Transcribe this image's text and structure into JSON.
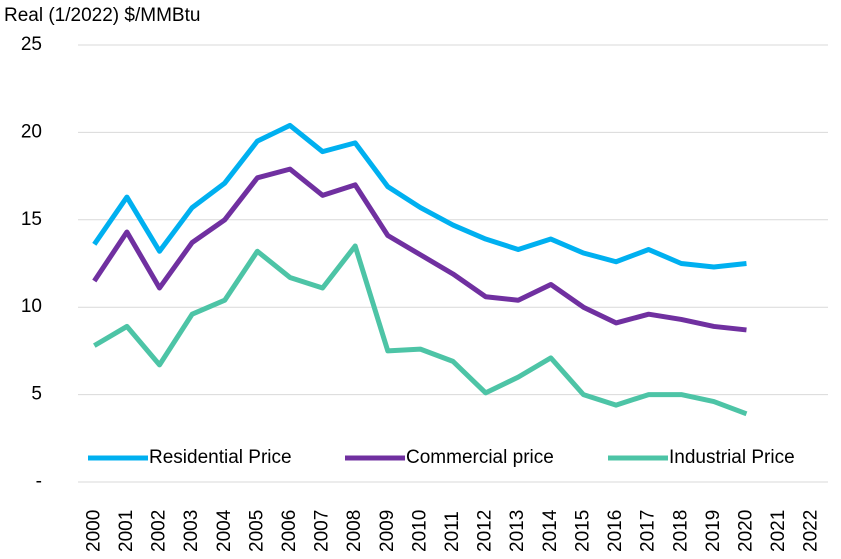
{
  "chart_data": {
    "type": "line",
    "y_label": "Real (1/2022) $/MMBtu",
    "categories": [
      "2000",
      "2001",
      "2002",
      "2003",
      "2004",
      "2005",
      "2006",
      "2007",
      "2008",
      "2009",
      "2010",
      "2011",
      "2012",
      "2013",
      "2014",
      "2015",
      "2016",
      "2017",
      "2018",
      "2019",
      "2020",
      "2021",
      "2022"
    ],
    "series": [
      {
        "name": "Residential Price",
        "color": "#00b0f0",
        "values": [
          13.6,
          16.3,
          13.2,
          15.7,
          17.1,
          19.5,
          20.4,
          18.9,
          19.4,
          16.9,
          15.7,
          14.7,
          13.9,
          13.3,
          13.9,
          13.1,
          12.6,
          13.3,
          12.5,
          12.3,
          12.5,
          null,
          null
        ]
      },
      {
        "name": "Commercial price",
        "color": "#7030a0",
        "values": [
          11.5,
          14.3,
          11.1,
          13.7,
          15.0,
          17.4,
          17.9,
          16.4,
          17.0,
          14.1,
          13.0,
          11.9,
          10.6,
          10.4,
          11.3,
          10.0,
          9.1,
          9.6,
          9.3,
          8.9,
          8.7,
          null,
          null
        ]
      },
      {
        "name": "Industrial Price",
        "color": "#4dc4a6",
        "values": [
          7.8,
          8.9,
          6.7,
          9.6,
          10.4,
          13.2,
          11.7,
          11.1,
          13.5,
          7.5,
          7.6,
          6.9,
          5.1,
          6.0,
          7.1,
          5.0,
          4.4,
          5.0,
          5.0,
          4.6,
          3.9,
          null,
          null
        ]
      }
    ],
    "ylim": [
      0,
      25
    ],
    "yticks": [
      {
        "value": 0,
        "label": "-"
      },
      5,
      10,
      15,
      20,
      25
    ],
    "grid": true,
    "legend": "bottom"
  }
}
